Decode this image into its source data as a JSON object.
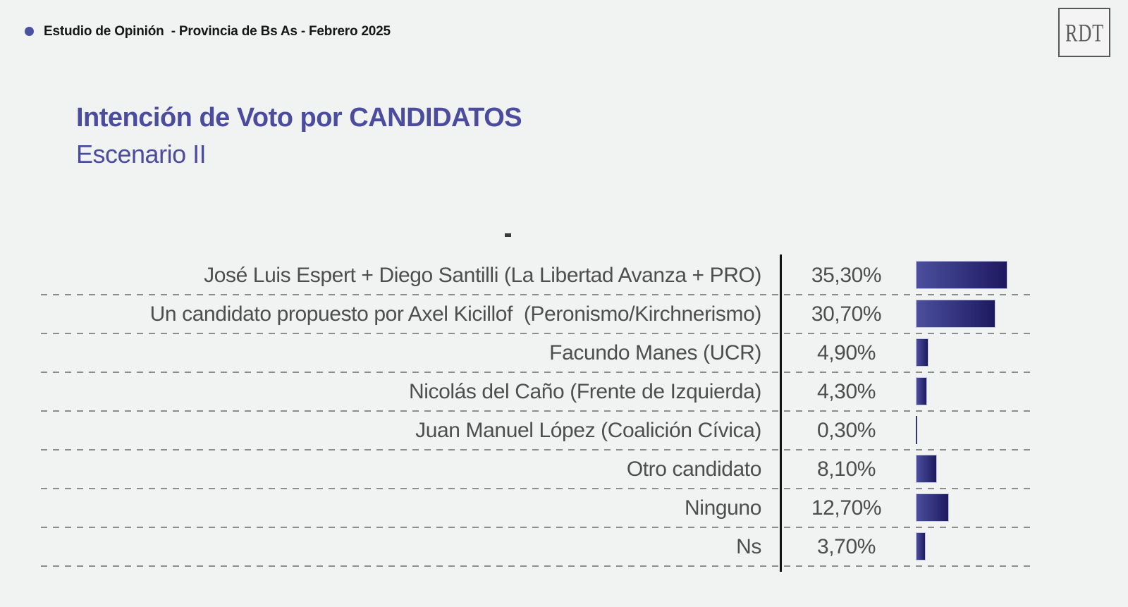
{
  "header": {
    "title": "Estudio de Opinión  - Provincia de Bs As - Febrero 2025",
    "bullet_color": "#4a52a0",
    "logo_text": "RDT"
  },
  "title_block": {
    "title": "Intención de Voto por CANDIDATOS",
    "subtitle": "Escenario II",
    "accent_color": "#4b4c9e"
  },
  "chart_data": {
    "type": "bar",
    "orientation": "horizontal",
    "title": "Intención de Voto por CANDIDATOS",
    "subtitle": "Escenario II",
    "categories": [
      "José Luis Espert + Diego Santilli (La Libertad Avanza + PRO)",
      "Un candidato propuesto por Axel Kicillof  (Peronismo/Kirchnerismo)",
      "Facundo Manes (UCR)",
      "Nicolás del Caño (Frente de Izquierda)",
      "Juan Manuel López (Coalición Cívica)",
      "Otro candidato",
      "Ninguno",
      "Ns"
    ],
    "values": [
      35.3,
      30.7,
      4.9,
      4.3,
      0.3,
      8.1,
      12.7,
      3.7
    ],
    "value_labels": [
      "35,30%",
      "30,70%",
      "4,90%",
      "4,30%",
      "0,30%",
      "8,10%",
      "12,70%",
      "3,70%"
    ],
    "xlim": [
      0,
      36.5
    ],
    "legend": "none",
    "grid": "dashed-row-separators",
    "bar_gradient_start": "#4b4f9e",
    "bar_gradient_end": "#1d1960",
    "bar_border_color": "#c2c6df",
    "separator_color": "#8d8d8d",
    "axis_line_color": "#121212",
    "text_color": "#4e4e4e"
  }
}
